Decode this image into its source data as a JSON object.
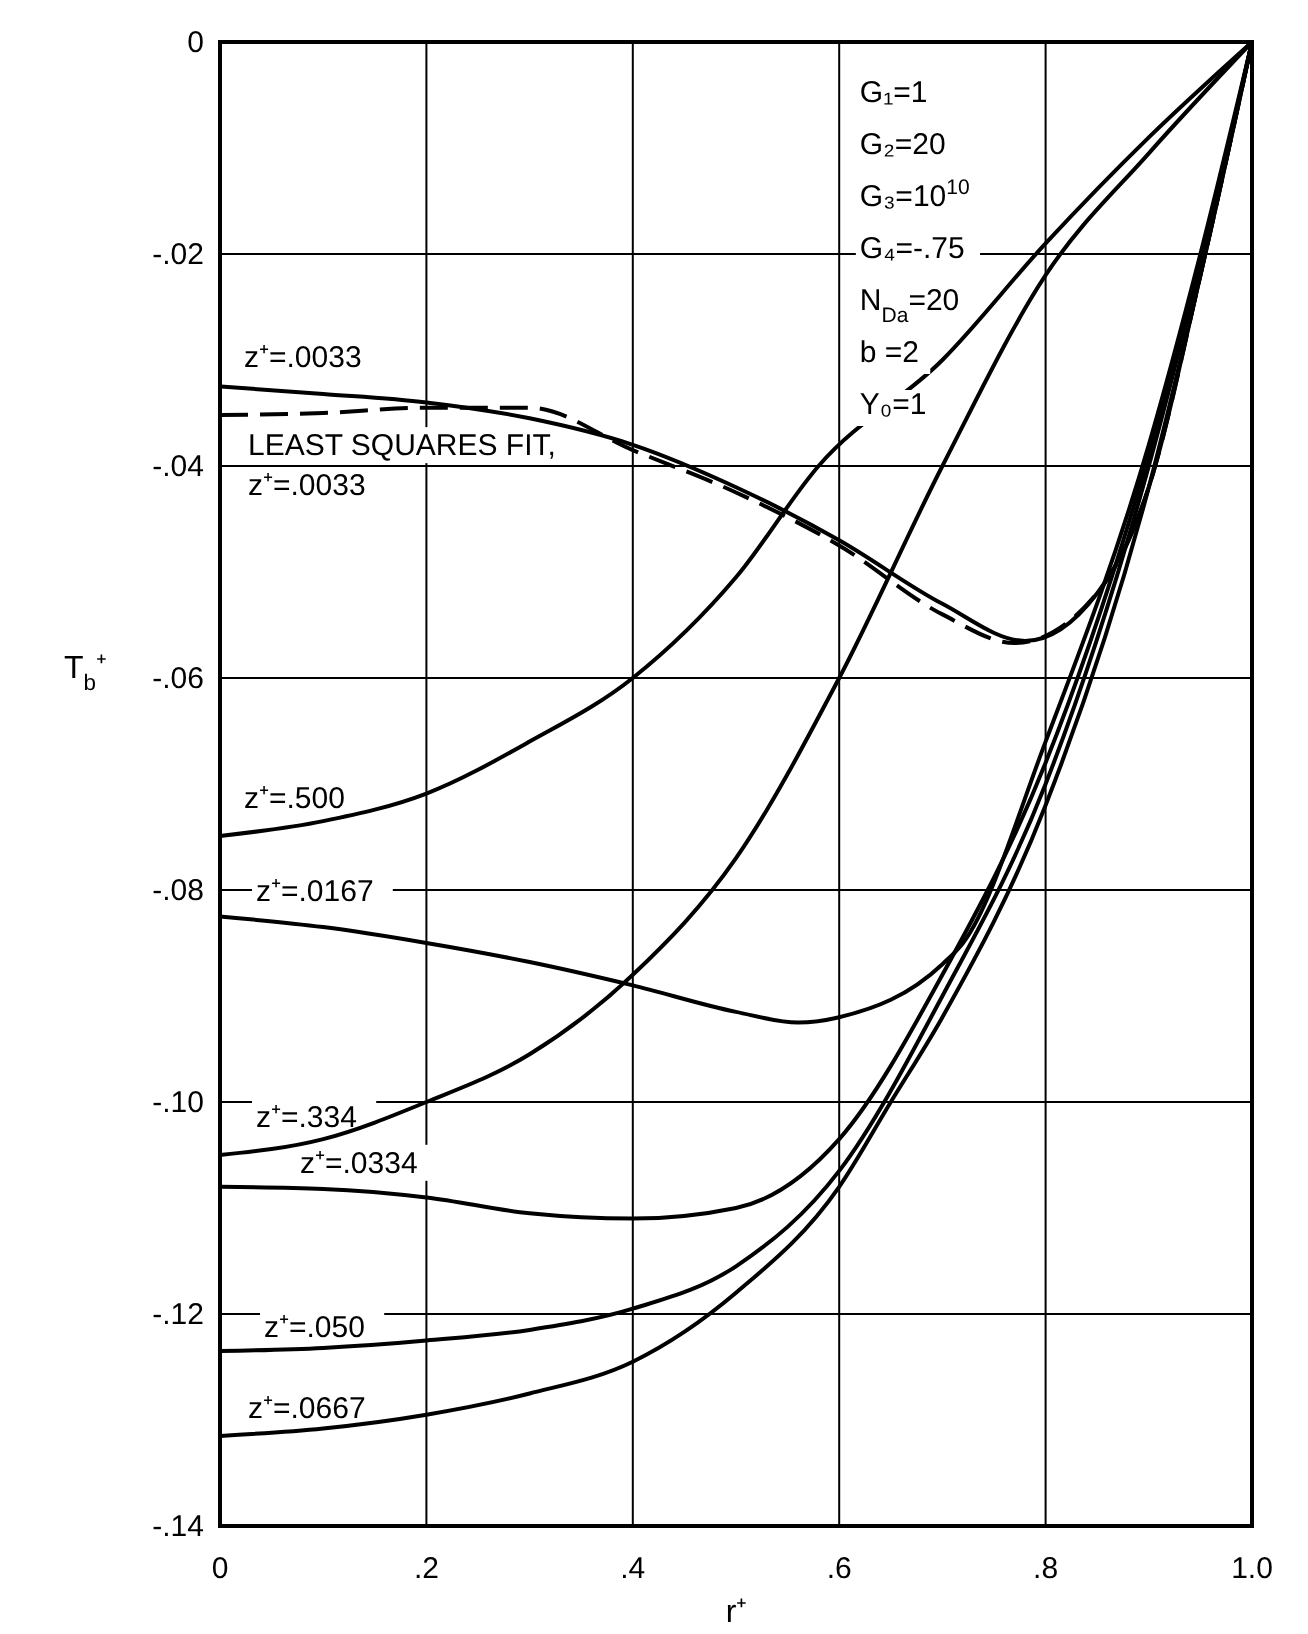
{
  "chart_data": {
    "type": "line",
    "xlabel": "r⁺",
    "ylabel": "T$_{b}$⁺",
    "series": [
      {
        "name": "z⁺=.0033",
        "color": "#000000",
        "line_style": "solid",
        "x": [
          0,
          0.1,
          0.2,
          0.3,
          0.4,
          0.5,
          0.6,
          0.7,
          0.78,
          0.85,
          0.9,
          0.95,
          1.0
        ],
        "values": [
          -0.0325,
          -0.0332,
          -0.034,
          -0.0355,
          -0.038,
          -0.042,
          -0.047,
          -0.053,
          -0.0565,
          -0.052,
          -0.042,
          -0.022,
          0
        ]
      },
      {
        "name": "LEAST SQUARES FIT, z⁺=.0033",
        "color": "#000000",
        "line_style": "dashed",
        "x": [
          0,
          0.1,
          0.2,
          0.3,
          0.4,
          0.5,
          0.6,
          0.7,
          0.77,
          0.85,
          0.9,
          0.95,
          1.0
        ],
        "values": [
          -0.0352,
          -0.035,
          -0.0345,
          -0.0345,
          -0.0385,
          -0.0425,
          -0.0475,
          -0.054,
          -0.0567,
          -0.052,
          -0.042,
          -0.022,
          0
        ]
      },
      {
        "name": "z⁺=.500",
        "color": "#000000",
        "line_style": "solid",
        "x": [
          0,
          0.1,
          0.2,
          0.3,
          0.4,
          0.5,
          0.58,
          0.7,
          0.8,
          0.9,
          1.0
        ],
        "values": [
          -0.0749,
          -0.0735,
          -0.0709,
          -0.066,
          -0.06,
          -0.0505,
          -0.04,
          -0.03,
          -0.019,
          -0.009,
          0
        ]
      },
      {
        "name": "z⁺=.0167",
        "color": "#000000",
        "line_style": "solid",
        "x": [
          0,
          0.1,
          0.2,
          0.3,
          0.4,
          0.5,
          0.56,
          0.6,
          0.7,
          0.72,
          0.8,
          0.9,
          0.95,
          1.0
        ],
        "values": [
          -0.0825,
          -0.0835,
          -0.085,
          -0.0868,
          -0.089,
          -0.0915,
          -0.0925,
          -0.092,
          -0.087,
          -0.085,
          -0.066,
          -0.038,
          -0.02,
          0
        ]
      },
      {
        "name": "z⁺=.334",
        "color": "#000000",
        "line_style": "solid",
        "x": [
          0,
          0.1,
          0.2,
          0.3,
          0.4,
          0.5,
          0.6,
          0.7,
          0.8,
          0.9,
          1.0
        ],
        "values": [
          -0.105,
          -0.1035,
          -0.1,
          -0.0955,
          -0.088,
          -0.077,
          -0.06,
          -0.04,
          -0.022,
          -0.0105,
          0
        ]
      },
      {
        "name": "z⁺=.0334",
        "color": "#000000",
        "line_style": "solid",
        "x": [
          0,
          0.1,
          0.2,
          0.3,
          0.4,
          0.5,
          0.6,
          0.7,
          0.8,
          0.9,
          0.95,
          1.0
        ],
        "values": [
          -0.108,
          -0.1082,
          -0.109,
          -0.1105,
          -0.111,
          -0.11,
          -0.1035,
          -0.088,
          -0.068,
          -0.039,
          -0.021,
          0
        ]
      },
      {
        "name": "z⁺=.050",
        "color": "#000000",
        "line_style": "solid",
        "x": [
          0,
          0.1,
          0.2,
          0.3,
          0.4,
          0.5,
          0.6,
          0.7,
          0.8,
          0.9,
          0.95,
          1.0
        ],
        "values": [
          -0.1235,
          -0.1232,
          -0.1225,
          -0.1215,
          -0.1195,
          -0.1155,
          -0.1065,
          -0.09,
          -0.07,
          -0.04,
          -0.021,
          0
        ]
      },
      {
        "name": "z⁺=.0667",
        "color": "#000000",
        "line_style": "solid",
        "x": [
          0,
          0.1,
          0.2,
          0.3,
          0.4,
          0.5,
          0.6,
          0.65,
          0.7,
          0.8,
          0.9,
          0.95,
          1.0
        ],
        "values": [
          -0.1315,
          -0.1308,
          -0.1295,
          -0.1275,
          -0.1245,
          -0.118,
          -0.108,
          -0.1,
          -0.092,
          -0.072,
          -0.042,
          -0.022,
          0
        ]
      }
    ],
    "annotations": [
      "G₁=1",
      "G₂=20",
      "G₃=10$^{10}$",
      "G₄=-.75",
      "N$_{Da}$=20",
      "b =2",
      "Y₀=1"
    ],
    "xlim": [
      0,
      1.0
    ],
    "xticks": [
      0,
      {
        "value": 0.2,
        "label": ".2"
      },
      {
        "value": 0.4,
        "label": ".4"
      },
      {
        "value": 0.6,
        "label": ".6"
      },
      {
        "value": 0.8,
        "label": ".8"
      },
      {
        "value": 1.0,
        "label": "1.0"
      }
    ],
    "ylim": [
      -0.14,
      0
    ],
    "yticks": [
      {
        "value": -0.14,
        "label": "-.14"
      },
      {
        "value": -0.12,
        "label": "-.12"
      },
      {
        "value": -0.1,
        "label": "-.10"
      },
      {
        "value": -0.08,
        "label": "-.08"
      },
      {
        "value": -0.06,
        "label": "-.06"
      },
      {
        "value": -0.04,
        "label": "-.04"
      },
      {
        "value": -0.02,
        "label": "-.02"
      },
      0
    ],
    "grid": true,
    "marker": "none"
  }
}
